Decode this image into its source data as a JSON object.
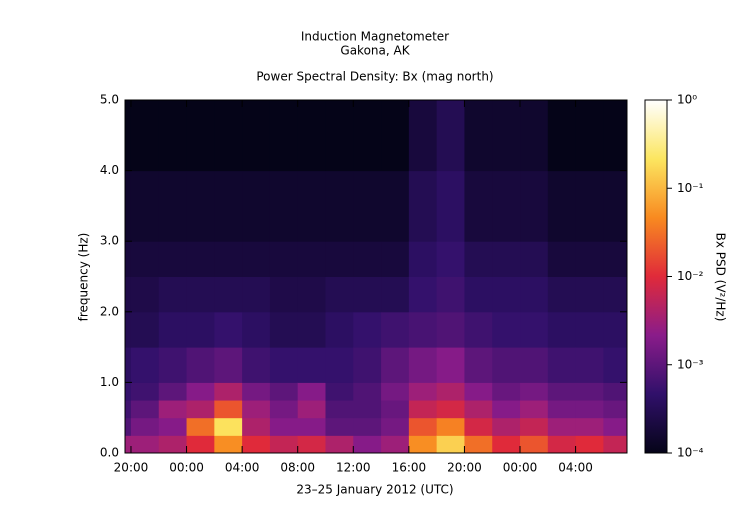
{
  "chart_data": {
    "type": "spectrogram",
    "title": "Induction Magnetometer",
    "subtitle": "Gakona, AK",
    "plot_title": "Power Spectral Density: Bx (mag north)",
    "x_label": "23–25 January 2012 (UTC)",
    "y_label": "frequency (Hz)",
    "colorbar_label": "Bx PSD (V²/Hz)",
    "xlim": [
      19.57,
      55.7
    ],
    "xticks": [
      {
        "value": 20,
        "label": "20:00"
      },
      {
        "value": 24,
        "label": "00:00"
      },
      {
        "value": 28,
        "label": "04:00"
      },
      {
        "value": 32,
        "label": "08:00"
      },
      {
        "value": 36,
        "label": "12:00"
      },
      {
        "value": 40,
        "label": "16:00"
      },
      {
        "value": 44,
        "label": "20:00"
      },
      {
        "value": 48,
        "label": "00:00"
      },
      {
        "value": 52,
        "label": "04:00"
      }
    ],
    "ylim": [
      0,
      5
    ],
    "yticks": [
      {
        "value": 0,
        "label": "0.0"
      },
      {
        "value": 1,
        "label": "1.0"
      },
      {
        "value": 2,
        "label": "2.0"
      },
      {
        "value": 3,
        "label": "3.0"
      },
      {
        "value": 4,
        "label": "4.0"
      },
      {
        "value": 5,
        "label": "5.0"
      }
    ],
    "clim": [
      0.0001,
      1
    ],
    "color_scale": "log",
    "cticks": [
      {
        "value": 0.0001,
        "label": "10⁻⁴"
      },
      {
        "value": 0.001,
        "label": "10⁻³"
      },
      {
        "value": 0.01,
        "label": "10⁻²"
      },
      {
        "value": 0.1,
        "label": "10⁻¹"
      },
      {
        "value": 1,
        "label": "10⁰"
      }
    ],
    "colormap": [
      "#050418",
      "#30106a",
      "#8a1c8a",
      "#e02a3a",
      "#f88a20",
      "#fce660",
      "#ffffff"
    ],
    "xbins": [
      18,
      20,
      22,
      24,
      26,
      28,
      30,
      32,
      34,
      36,
      38,
      40,
      42,
      44,
      46,
      48,
      50,
      52,
      54,
      56
    ],
    "ybins": [
      0,
      0.25,
      0.5,
      0.75,
      1,
      1.5,
      2,
      2.5,
      3,
      4,
      5
    ],
    "values": [
      [
        0.003,
        0.0008,
        0.0006,
        0.0005,
        0.0004,
        0.0003,
        0.00025,
        0.0002,
        0.00015,
        0.0001
      ],
      [
        0.003,
        0.0015,
        0.001,
        0.0006,
        0.0005,
        0.0003,
        0.00025,
        0.0002,
        0.00015,
        0.0001
      ],
      [
        0.004,
        0.002,
        0.003,
        0.001,
        0.0006,
        0.0004,
        0.0003,
        0.0002,
        0.00015,
        0.0001
      ],
      [
        0.01,
        0.03,
        0.004,
        0.002,
        0.0008,
        0.0004,
        0.0003,
        0.0002,
        0.00015,
        0.0001
      ],
      [
        0.05,
        0.2,
        0.02,
        0.004,
        0.001,
        0.0005,
        0.0003,
        0.0002,
        0.00015,
        0.0001
      ],
      [
        0.01,
        0.004,
        0.003,
        0.0015,
        0.0006,
        0.0004,
        0.0003,
        0.0002,
        0.00015,
        0.0001
      ],
      [
        0.006,
        0.002,
        0.0015,
        0.001,
        0.0005,
        0.0003,
        0.00025,
        0.0002,
        0.00015,
        0.0001
      ],
      [
        0.008,
        0.002,
        0.003,
        0.002,
        0.0005,
        0.0003,
        0.00025,
        0.0002,
        0.00015,
        0.0001
      ],
      [
        0.004,
        0.001,
        0.0008,
        0.0006,
        0.0005,
        0.0004,
        0.0003,
        0.0002,
        0.00015,
        0.0001
      ],
      [
        0.002,
        0.001,
        0.0008,
        0.0008,
        0.0006,
        0.0005,
        0.0003,
        0.0002,
        0.00015,
        0.0001
      ],
      [
        0.003,
        0.0015,
        0.0012,
        0.0015,
        0.001,
        0.0006,
        0.0003,
        0.0002,
        0.00015,
        0.0001
      ],
      [
        0.05,
        0.02,
        0.006,
        0.003,
        0.0015,
        0.0007,
        0.0005,
        0.0004,
        0.0003,
        0.0002
      ],
      [
        0.15,
        0.04,
        0.008,
        0.004,
        0.002,
        0.0008,
        0.0006,
        0.0005,
        0.0004,
        0.0003
      ],
      [
        0.03,
        0.008,
        0.004,
        0.002,
        0.001,
        0.0006,
        0.0004,
        0.0003,
        0.0002,
        0.00015
      ],
      [
        0.01,
        0.004,
        0.002,
        0.0012,
        0.0008,
        0.0005,
        0.0004,
        0.0003,
        0.0002,
        0.00015
      ],
      [
        0.02,
        0.006,
        0.003,
        0.0015,
        0.0008,
        0.0005,
        0.0004,
        0.0003,
        0.0002,
        0.00015
      ],
      [
        0.008,
        0.003,
        0.0015,
        0.001,
        0.0006,
        0.0004,
        0.0003,
        0.0002,
        0.00015,
        0.0001
      ],
      [
        0.01,
        0.003,
        0.0015,
        0.001,
        0.0006,
        0.0004,
        0.0003,
        0.0002,
        0.00015,
        0.0001
      ],
      [
        0.006,
        0.002,
        0.0012,
        0.0008,
        0.0005,
        0.0004,
        0.0003,
        0.0002,
        0.00015,
        0.0001
      ]
    ]
  }
}
